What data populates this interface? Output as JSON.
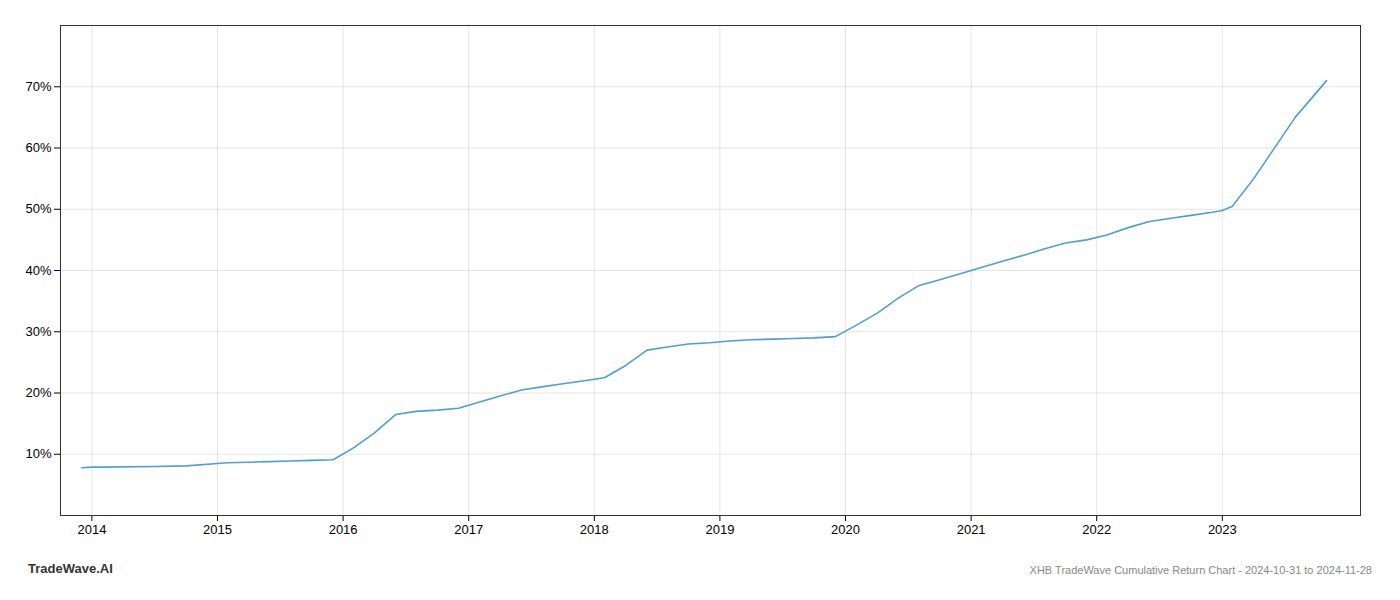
{
  "chart_data": {
    "type": "line",
    "title": "XHB TradeWave Cumulative Return Chart - 2024-10-31 to 2024-11-28",
    "annotations": [
      {
        "text": "TradeWave.AI"
      }
    ],
    "x": [
      2013.92,
      2014.0,
      2014.08,
      2014.5,
      2014.75,
      2015.0,
      2015.08,
      2015.25,
      2015.42,
      2015.58,
      2015.75,
      2015.92,
      2016.08,
      2016.25,
      2016.42,
      2016.58,
      2016.75,
      2016.92,
      2017.08,
      2017.25,
      2017.42,
      2017.58,
      2017.75,
      2017.92,
      2018.08,
      2018.25,
      2018.42,
      2018.58,
      2018.75,
      2018.92,
      2019.08,
      2019.25,
      2019.42,
      2019.58,
      2019.75,
      2019.92,
      2020.08,
      2020.25,
      2020.42,
      2020.58,
      2020.75,
      2020.92,
      2021.08,
      2021.25,
      2021.42,
      2021.58,
      2021.75,
      2021.92,
      2022.08,
      2022.25,
      2022.42,
      2022.58,
      2022.75,
      2022.92,
      2023.0,
      2023.08,
      2023.25,
      2023.58,
      2023.83
    ],
    "values": [
      7.8,
      7.9,
      7.9,
      8.0,
      8.1,
      8.5,
      8.6,
      8.7,
      8.8,
      8.9,
      9.0,
      9.1,
      11.0,
      13.5,
      16.5,
      17.0,
      17.2,
      17.5,
      18.5,
      19.5,
      20.5,
      21.0,
      21.5,
      22.0,
      22.5,
      24.5,
      27.0,
      27.5,
      28.0,
      28.2,
      28.5,
      28.7,
      28.8,
      28.9,
      29.0,
      29.2,
      31.0,
      33.0,
      35.5,
      37.5,
      38.5,
      39.5,
      40.5,
      41.5,
      42.5,
      43.5,
      44.5,
      45.0,
      45.8,
      47.0,
      48.0,
      48.5,
      49.0,
      49.5,
      49.8,
      50.5,
      55.0,
      65.0,
      71.0
    ],
    "color": "#4d9fd6",
    "xlim": [
      2013.75,
      2024.1
    ],
    "ylim": [
      0,
      80
    ],
    "xticks": [
      2014,
      2015,
      2016,
      2017,
      2018,
      2019,
      2020,
      2021,
      2022,
      2023
    ],
    "yticks": [
      {
        "value": 10,
        "label": "10%"
      },
      {
        "value": 20,
        "label": "20%"
      },
      {
        "value": 30,
        "label": "30%"
      },
      {
        "value": 40,
        "label": "40%"
      },
      {
        "value": 50,
        "label": "50%"
      },
      {
        "value": 60,
        "label": "60%"
      },
      {
        "value": 70,
        "label": "70%"
      }
    ],
    "grid": true
  }
}
